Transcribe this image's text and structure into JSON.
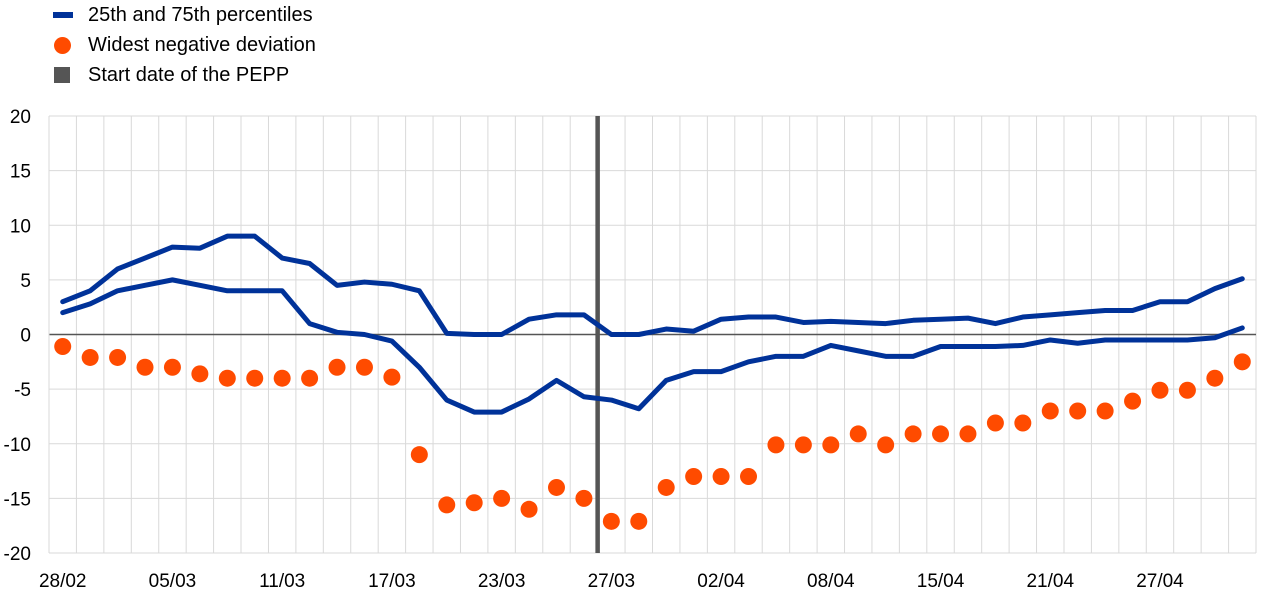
{
  "legend": [
    {
      "label": "25th and 75th percentiles",
      "color": "#003299",
      "marker": "line"
    },
    {
      "label": "Widest negative deviation",
      "color": "#ff4b00",
      "marker": "dot"
    },
    {
      "label": "Start date of the PEPP",
      "color": "#555555",
      "marker": "square"
    }
  ],
  "chart_data": {
    "type": "line",
    "x": [
      "28/02",
      "02/03",
      "03/03",
      "04/03",
      "05/03",
      "06/03",
      "09/03",
      "10/03",
      "11/03",
      "12/03",
      "13/03",
      "16/03",
      "17/03",
      "18/03",
      "19/03",
      "20/03",
      "23/03",
      "24/03",
      "25/03",
      "26/03",
      "27/03",
      "30/03",
      "31/03",
      "01/04",
      "02/04",
      "03/04",
      "06/04",
      "07/04",
      "08/04",
      "09/04",
      "10/04",
      "14/04",
      "15/04",
      "16/04",
      "17/04",
      "20/04",
      "21/04",
      "22/04",
      "23/04",
      "24/04",
      "27/04",
      "28/04",
      "29/04",
      "30/04"
    ],
    "x_tick_labels": [
      "28/02",
      "05/03",
      "11/03",
      "17/03",
      "23/03",
      "27/03",
      "02/04",
      "08/04",
      "15/04",
      "21/04",
      "27/04"
    ],
    "ylim": [
      -20,
      20
    ],
    "y_ticks": [
      20,
      15,
      10,
      5,
      0,
      -5,
      -10,
      -15,
      -20
    ],
    "grid": true,
    "legend_position": "top-left",
    "series": [
      {
        "name": "25th and 75th percentiles",
        "role": "75th",
        "type": "line",
        "color": "#003299",
        "values": [
          3.0,
          4.0,
          6.0,
          7.0,
          8.0,
          7.9,
          9.0,
          9.0,
          7.0,
          6.5,
          4.5,
          4.8,
          4.6,
          4.0,
          0.1,
          0.0,
          0.0,
          1.4,
          1.8,
          1.8,
          0.0,
          0.0,
          0.5,
          0.3,
          1.4,
          1.6,
          1.6,
          1.1,
          1.2,
          1.1,
          1.0,
          1.3,
          1.4,
          1.5,
          1.0,
          1.6,
          1.8,
          2.0,
          2.2,
          2.2,
          3.0,
          3.0,
          4.2,
          5.1
        ]
      },
      {
        "role": "25th",
        "type": "line",
        "color": "#003299",
        "values": [
          2.0,
          2.8,
          4.0,
          4.5,
          5.0,
          4.5,
          4.0,
          4.0,
          4.0,
          1.0,
          0.2,
          0.0,
          -0.6,
          -3.0,
          -6.0,
          -7.1,
          -7.1,
          -5.9,
          -4.2,
          -5.7,
          -6.0,
          -6.8,
          -4.2,
          -3.4,
          -3.4,
          -2.5,
          -2.0,
          -2.0,
          -1.0,
          -1.5,
          -2.0,
          -2.0,
          -1.1,
          -1.1,
          -1.1,
          -1.0,
          -0.5,
          -0.8,
          -0.5,
          -0.5,
          -0.5,
          -0.5,
          -0.3,
          0.6
        ]
      },
      {
        "name": "Widest negative deviation",
        "type": "scatter",
        "color": "#ff4b00",
        "values": [
          -1.1,
          -2.1,
          -2.1,
          -3.0,
          -3.0,
          -3.6,
          -4.0,
          -4.0,
          -4.0,
          -4.0,
          -3.0,
          -3.0,
          -3.9,
          -11.0,
          -15.6,
          -15.4,
          -15.0,
          -16.0,
          -14.0,
          -15.0,
          -17.1,
          -17.1,
          -14.0,
          -13.0,
          -13.0,
          -13.0,
          -10.1,
          -10.1,
          -10.1,
          -9.1,
          -10.1,
          -9.1,
          -9.1,
          -9.1,
          -8.1,
          -8.1,
          -7.0,
          -7.0,
          -7.0,
          -6.1,
          -5.1,
          -5.1,
          -4.0,
          -2.5
        ]
      }
    ],
    "vline": {
      "x": "26/03",
      "color": "#555555"
    }
  }
}
